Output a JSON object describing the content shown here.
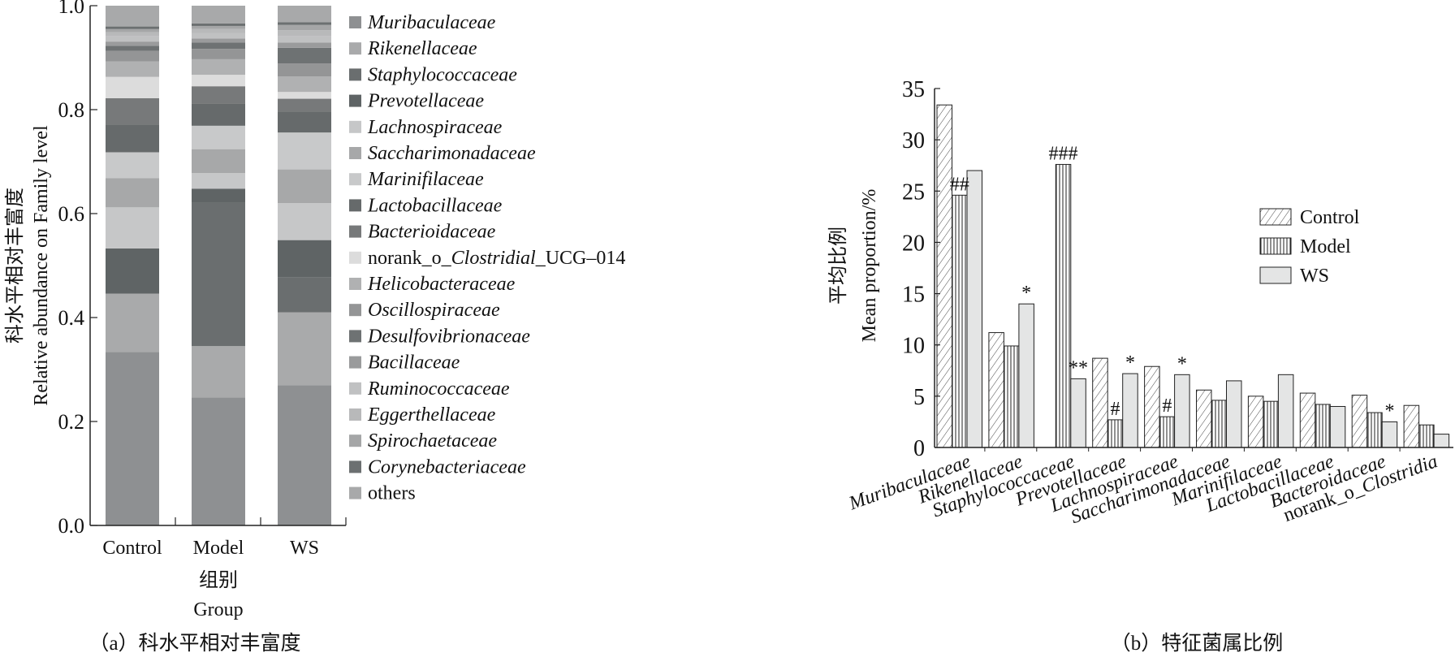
{
  "chart_data": [
    {
      "type": "bar",
      "stacked": true,
      "title": "",
      "caption": "（a）科水平相对丰富度",
      "xlabel_cn": "组别",
      "xlabel": "Group",
      "ylabel_cn": "科水平相对丰富度",
      "ylabel": "Relative abundance on Family level",
      "ylim": [
        0,
        1.0
      ],
      "yticks": [
        "0.0",
        "0.2",
        "0.4",
        "0.6",
        "0.8",
        "1.0"
      ],
      "categories": [
        "Control",
        "Model",
        "WS"
      ],
      "legend_position": "right",
      "series": [
        {
          "name": "Muribaculaceae",
          "color": "#8e9092",
          "values": [
            0.334,
            0.246,
            0.27
          ]
        },
        {
          "name": "Rikenellaceae",
          "color": "#a9aaab",
          "values": [
            0.112,
            0.099,
            0.14
          ]
        },
        {
          "name": "Staphylococcaceae",
          "color": "#6a6e6f",
          "values": [
            0.0,
            0.276,
            0.067
          ]
        },
        {
          "name": "Prevotellaceae",
          "color": "#5f6465",
          "values": [
            0.087,
            0.027,
            0.072
          ]
        },
        {
          "name": "Lachnospiraceae",
          "color": "#c6c7c8",
          "values": [
            0.079,
            0.03,
            0.071
          ]
        },
        {
          "name": "Saccharimonadaceae",
          "color": "#a7a8a9",
          "values": [
            0.056,
            0.046,
            0.065
          ]
        },
        {
          "name": "Marinifilaceae",
          "color": "#c8c9ca",
          "values": [
            0.05,
            0.045,
            0.071
          ]
        },
        {
          "name": "Lactobacillaceae",
          "color": "#666a6b",
          "values": [
            0.053,
            0.042,
            0.04
          ]
        },
        {
          "name": "Bacterioidaceae",
          "color": "#77797a",
          "values": [
            0.051,
            0.034,
            0.025
          ]
        },
        {
          "name": "norank_o_Clostridial_UCG-014",
          "name_parts": [
            "norank_o_",
            "Clostridial",
            "_UCG–014"
          ],
          "color": "#dcdcdc",
          "values": [
            0.041,
            0.022,
            0.013
          ]
        },
        {
          "name": "Helicobacteraceae",
          "color": "#b0b1b2",
          "values": [
            0.03,
            0.03,
            0.03
          ]
        },
        {
          "name": "Oscillospiraceae",
          "color": "#949596",
          "values": [
            0.02,
            0.02,
            0.025
          ]
        },
        {
          "name": "Desulfovibrionaceae",
          "color": "#6e7273",
          "values": [
            0.01,
            0.012,
            0.03
          ]
        },
        {
          "name": "Bacillaceae",
          "color": "#9a9b9c",
          "values": [
            0.008,
            0.008,
            0.01
          ]
        },
        {
          "name": "Ruminococcaceae",
          "color": "#c0c1c2",
          "values": [
            0.01,
            0.01,
            0.012
          ]
        },
        {
          "name": "Eggerthellaceae",
          "color": "#b8b9ba",
          "values": [
            0.008,
            0.008,
            0.012
          ]
        },
        {
          "name": "Spirochaetaceae",
          "color": "#a5a6a7",
          "values": [
            0.006,
            0.006,
            0.01
          ]
        },
        {
          "name": "Corynebacteriaceae",
          "color": "#6c7071",
          "values": [
            0.005,
            0.005,
            0.005
          ]
        },
        {
          "name": "others",
          "color": "#a8a9aa",
          "values": [
            0.04,
            0.034,
            0.032
          ],
          "italic": false
        }
      ]
    },
    {
      "type": "bar",
      "title": "",
      "caption": "（b）特征菌属比例",
      "ylabel_cn": "平均比例",
      "ylabel": "Mean proportion/%",
      "ylim": [
        0,
        35
      ],
      "yticks": [
        "0",
        "5",
        "10",
        "15",
        "20",
        "25",
        "30",
        "35"
      ],
      "legend_position": "right",
      "categories": [
        "Muribaculaceae",
        "Rikenellaceae",
        "Staphylococcaceae",
        "Prevotellaceae",
        "Lachnospiraceae",
        "Saccharimonadaceae",
        "Marinifilaceae",
        "Lactobacillaceae",
        "Bacteroidaceae",
        "norank_o_Clostridia"
      ],
      "category_parts": {
        "9": [
          "norank_o_",
          "Clostridia"
        ]
      },
      "series": [
        {
          "name": "Control",
          "pattern": "diagonal",
          "values": [
            33.4,
            11.2,
            0,
            8.7,
            7.9,
            5.6,
            5.0,
            5.3,
            5.1,
            4.1
          ]
        },
        {
          "name": "Model",
          "pattern": "vertical",
          "values": [
            24.6,
            9.9,
            27.6,
            2.7,
            3.0,
            4.6,
            4.5,
            4.2,
            3.4,
            2.2
          ]
        },
        {
          "name": "WS",
          "pattern": "solid",
          "color": "#e4e5e5",
          "values": [
            27.0,
            14.0,
            6.7,
            7.2,
            7.1,
            6.5,
            7.1,
            4.0,
            2.5,
            1.3
          ]
        }
      ],
      "annotations": [
        {
          "category": 0,
          "series": 1,
          "text": "##"
        },
        {
          "category": 1,
          "series": 2,
          "text": "*"
        },
        {
          "category": 2,
          "series": 1,
          "text": "###"
        },
        {
          "category": 2,
          "series": 2,
          "text": "**"
        },
        {
          "category": 3,
          "series": 1,
          "text": "#"
        },
        {
          "category": 3,
          "series": 2,
          "text": "*"
        },
        {
          "category": 4,
          "series": 1,
          "text": "#"
        },
        {
          "category": 4,
          "series": 2,
          "text": "*"
        },
        {
          "category": 8,
          "series": 2,
          "text": "*"
        }
      ]
    }
  ]
}
